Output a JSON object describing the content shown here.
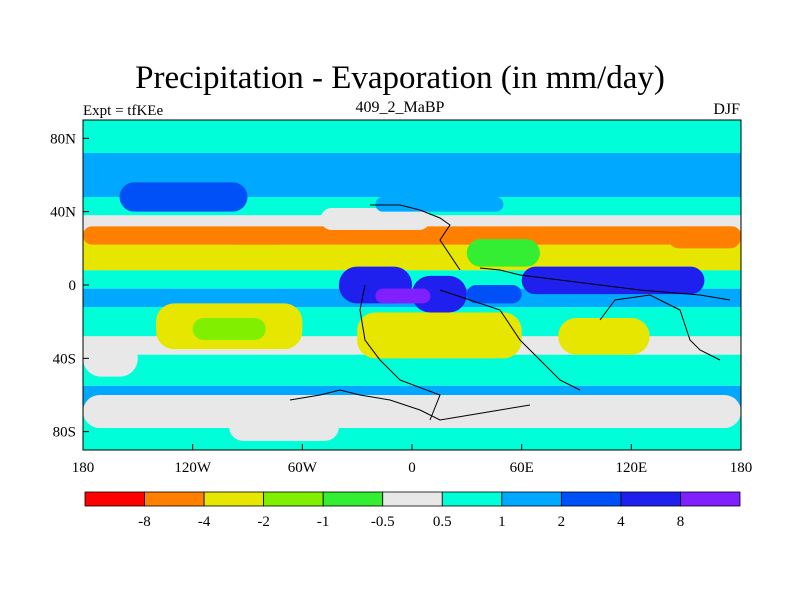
{
  "title": "Precipitation - Evaporation (in mm/day)",
  "subtitle_left": "Expt = tfKEe",
  "subtitle_center": "409_2_MaBP",
  "subtitle_right": "DJF",
  "chart_data": {
    "type": "heatmap",
    "title": "Precipitation - Evaporation (in mm/day)",
    "x_ticks": [
      {
        "value": -180,
        "label": "180"
      },
      {
        "value": -120,
        "label": "120W"
      },
      {
        "value": -60,
        "label": "60W"
      },
      {
        "value": 0,
        "label": "0"
      },
      {
        "value": 60,
        "label": "60E"
      },
      {
        "value": 120,
        "label": "120E"
      },
      {
        "value": 180,
        "label": "180"
      }
    ],
    "y_ticks": [
      {
        "value": 80,
        "label": "80N"
      },
      {
        "value": 40,
        "label": "40N"
      },
      {
        "value": 0,
        "label": "0"
      },
      {
        "value": -40,
        "label": "40S"
      },
      {
        "value": -80,
        "label": "80S"
      }
    ],
    "xlim": [
      -180,
      180
    ],
    "ylim": [
      -90,
      90
    ],
    "colorbar": {
      "colors": [
        "#ff0000",
        "#ff8000",
        "#e6e600",
        "#80f000",
        "#33ee33",
        "#e8e8e8",
        "#00ffd8",
        "#00a8ff",
        "#0050f8",
        "#2020ee",
        "#8020ff"
      ],
      "labels": [
        "-8",
        "-4",
        "-2",
        "-1",
        "-0.5",
        "0.5",
        "1",
        "2",
        "4",
        "8"
      ]
    },
    "bands": [
      {
        "lat": [
          72,
          90
        ],
        "level": 6
      },
      {
        "lat": [
          48,
          72
        ],
        "level": 7
      },
      {
        "lat": [
          38,
          48
        ],
        "level": 6
      },
      {
        "lat": [
          30,
          38
        ],
        "level": 5
      },
      {
        "lat": [
          18,
          30
        ],
        "level": 2
      },
      {
        "lat": [
          8,
          18
        ],
        "level": 2
      },
      {
        "lat": [
          -2,
          8
        ],
        "level": 6
      },
      {
        "lat": [
          -12,
          -2
        ],
        "level": 7
      },
      {
        "lat": [
          -28,
          -12
        ],
        "level": 6
      },
      {
        "lat": [
          -38,
          -28
        ],
        "level": 5
      },
      {
        "lat": [
          -55,
          -38
        ],
        "level": 6
      },
      {
        "lat": [
          -70,
          -55
        ],
        "level": 7
      },
      {
        "lat": [
          -90,
          -70
        ],
        "level": 6
      }
    ],
    "patches": [
      {
        "lon": [
          -160,
          -90
        ],
        "lat": [
          40,
          56
        ],
        "level": 8
      },
      {
        "lon": [
          -180,
          180
        ],
        "lat": [
          22,
          32
        ],
        "level": 1
      },
      {
        "lon": [
          -50,
          10
        ],
        "lat": [
          30,
          42
        ],
        "level": 5
      },
      {
        "lon": [
          -20,
          50
        ],
        "lat": [
          40,
          48
        ],
        "level": 7
      },
      {
        "lon": [
          -140,
          -60
        ],
        "lat": [
          -35,
          -10
        ],
        "level": 2
      },
      {
        "lon": [
          -120,
          -80
        ],
        "lat": [
          -30,
          -18
        ],
        "level": 3
      },
      {
        "lon": [
          -30,
          60
        ],
        "lat": [
          -40,
          -15
        ],
        "level": 2
      },
      {
        "lon": [
          80,
          130
        ],
        "lat": [
          -38,
          -18
        ],
        "level": 2
      },
      {
        "lon": [
          -40,
          0
        ],
        "lat": [
          -10,
          10
        ],
        "level": 9
      },
      {
        "lon": [
          0,
          30
        ],
        "lat": [
          -15,
          5
        ],
        "level": 9
      },
      {
        "lon": [
          30,
          60
        ],
        "lat": [
          -10,
          0
        ],
        "level": 8
      },
      {
        "lon": [
          60,
          160
        ],
        "lat": [
          -5,
          10
        ],
        "level": 9
      },
      {
        "lon": [
          -20,
          10
        ],
        "lat": [
          -10,
          -2
        ],
        "level": 10
      },
      {
        "lon": [
          30,
          70
        ],
        "lat": [
          10,
          25
        ],
        "level": 4
      },
      {
        "lon": [
          -180,
          -150
        ],
        "lat": [
          -50,
          -30
        ],
        "level": 5
      },
      {
        "lon": [
          -180,
          180
        ],
        "lat": [
          -78,
          -60
        ],
        "level": 5
      },
      {
        "lon": [
          -100,
          -40
        ],
        "lat": [
          -85,
          -70
        ],
        "level": 5
      },
      {
        "lon": [
          140,
          180
        ],
        "lat": [
          20,
          32
        ],
        "level": 1
      },
      {
        "lon": [
          -100,
          -70
        ],
        "lat": [
          22,
          28
        ],
        "level": 1
      }
    ]
  }
}
